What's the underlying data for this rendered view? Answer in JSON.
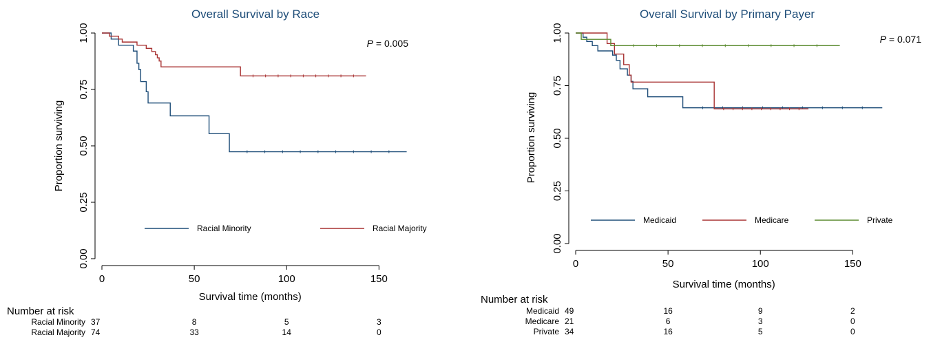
{
  "chart_data": [
    {
      "type": "line",
      "title": "Overall Survival by Race",
      "xlabel": "Survival time (months)",
      "ylabel": "Proportion surviving",
      "xlim": [
        0,
        170
      ],
      "ylim": [
        0,
        1
      ],
      "xticks": [
        "0",
        "50",
        "100",
        "150"
      ],
      "yticks": [
        "0.00",
        "0.25",
        "0.50",
        "0.75",
        "1.00"
      ],
      "pvalue": {
        "label": "P",
        "text": "= 0.005"
      },
      "legend_position": "lower-center",
      "series": [
        {
          "name": "Racial Minority",
          "color": "#1f4e79",
          "steps": [
            [
              0,
              1.0
            ],
            [
              5,
              0.973
            ],
            [
              9,
              0.946
            ],
            [
              17,
              0.92
            ],
            [
              19,
              0.866
            ],
            [
              20,
              0.838
            ],
            [
              21,
              0.785
            ],
            [
              24,
              0.74
            ],
            [
              25,
              0.69
            ],
            [
              37,
              0.633
            ],
            [
              58,
              0.554
            ],
            [
              69,
              0.474
            ],
            [
              165,
              0.474
            ]
          ]
        },
        {
          "name": "Racial Majority",
          "color": "#a83232",
          "steps": [
            [
              0,
              1.0
            ],
            [
              4,
              0.986
            ],
            [
              9,
              0.973
            ],
            [
              11,
              0.96
            ],
            [
              19,
              0.946
            ],
            [
              24,
              0.932
            ],
            [
              27,
              0.918
            ],
            [
              29,
              0.904
            ],
            [
              30,
              0.89
            ],
            [
              31,
              0.876
            ],
            [
              32,
              0.85
            ],
            [
              75,
              0.81
            ],
            [
              143,
              0.81
            ]
          ]
        }
      ],
      "risk_table": {
        "header": "Number at risk",
        "rows": [
          {
            "label": "Racial Minority",
            "values": [
              "37",
              "8",
              "5",
              "3"
            ]
          },
          {
            "label": "Racial Majority",
            "values": [
              "74",
              "33",
              "14",
              "0"
            ]
          }
        ]
      }
    },
    {
      "type": "line",
      "title": "Overall Survival by Primary Payer",
      "xlabel": "Survival time (months)",
      "ylabel": "Proportion surviving",
      "xlim": [
        0,
        170
      ],
      "ylim": [
        0,
        1
      ],
      "xticks": [
        "0",
        "50",
        "100",
        "150"
      ],
      "yticks": [
        "0.00",
        "0.25",
        "0.50",
        "0.75",
        "1.00"
      ],
      "pvalue": {
        "label": "P",
        "text": "= 0.071"
      },
      "legend_position": "lower-center",
      "series": [
        {
          "name": "Medicaid",
          "color": "#1f4e79",
          "steps": [
            [
              0,
              1.0
            ],
            [
              4,
              0.98
            ],
            [
              6,
              0.96
            ],
            [
              9,
              0.94
            ],
            [
              12,
              0.915
            ],
            [
              20,
              0.895
            ],
            [
              22,
              0.87
            ],
            [
              24,
              0.83
            ],
            [
              28,
              0.8
            ],
            [
              30,
              0.77
            ],
            [
              31,
              0.735
            ],
            [
              39,
              0.697
            ],
            [
              58,
              0.645
            ],
            [
              166,
              0.645
            ]
          ]
        },
        {
          "name": "Medicare",
          "color": "#a83232",
          "steps": [
            [
              0,
              1.0
            ],
            [
              17,
              0.95
            ],
            [
              21,
              0.9
            ],
            [
              26,
              0.85
            ],
            [
              29,
              0.8
            ],
            [
              30,
              0.767
            ],
            [
              75,
              0.64
            ],
            [
              126,
              0.64
            ]
          ]
        },
        {
          "name": "Private",
          "color": "#5a8a2e",
          "steps": [
            [
              0,
              1.0
            ],
            [
              3,
              0.97
            ],
            [
              19,
              0.94
            ],
            [
              143,
              0.94
            ]
          ]
        }
      ],
      "risk_table": {
        "header": "Number at risk",
        "rows": [
          {
            "label": "Medicaid",
            "values": [
              "49",
              "16",
              "9",
              "2"
            ]
          },
          {
            "label": "Medicare",
            "values": [
              "21",
              "6",
              "3",
              "0"
            ]
          },
          {
            "label": "Private",
            "values": [
              "34",
              "16",
              "5",
              "0"
            ]
          }
        ]
      }
    }
  ]
}
